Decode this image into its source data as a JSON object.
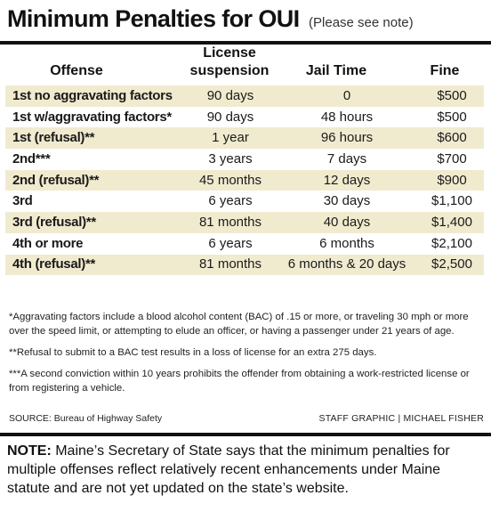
{
  "header": {
    "title": "Minimum Penalties for OUI",
    "note": "(Please see note)"
  },
  "columns": {
    "offense": "Offense",
    "license_line1": "License",
    "license_line2": "suspension",
    "jail": "Jail Time",
    "fine": "Fine"
  },
  "rows": [
    {
      "offense": "1st no aggravating factors",
      "license": "90 days",
      "jail": "0",
      "fine": "$500"
    },
    {
      "offense": "1st w/aggravating factors*",
      "license": "90 days",
      "jail": "48 hours",
      "fine": "$500"
    },
    {
      "offense": "1st (refusal)**",
      "license": "1 year",
      "jail": "96 hours",
      "fine": "$600"
    },
    {
      "offense": "2nd***",
      "license": "3 years",
      "jail": "7 days",
      "fine": "$700"
    },
    {
      "offense": "2nd (refusal)**",
      "license": "45 months",
      "jail": "12 days",
      "fine": "$900"
    },
    {
      "offense": "3rd",
      "license": "6 years",
      "jail": "30 days",
      "fine": "$1,100"
    },
    {
      "offense": "3rd (refusal)**",
      "license": "81 months",
      "jail": "40 days",
      "fine": "$1,400"
    },
    {
      "offense": "4th or more",
      "license": "6 years",
      "jail": "6 months",
      "fine": "$2,100"
    },
    {
      "offense": "4th (refusal)**",
      "license": "81 months",
      "jail": "6 months & 20 days",
      "fine": "$2,500"
    }
  ],
  "footnotes": [
    "*Aggravating factors include a blood alcohol content (BAC) of .15 or more, or traveling 30 mph or more over the speed limit, or attempting to elude an officer, or having a passenger under 21 years of age.",
    "**Refusal to submit to a BAC test results in a loss of license for an extra 275 days.",
    "***A second conviction within 10 years prohibits the offender from obtaining a work-restricted license or from registering a vehicle."
  ],
  "source": "SOURCE: Bureau of Highway Safety",
  "credit": "STAFF GRAPHIC | MICHAEL FISHER",
  "note": {
    "label": "NOTE:",
    "text": " Maine’s Secretary of State says that the minimum penalties for multiple offenses reflect relatively recent enhancements under Maine statute and are not yet updated on the state’s website."
  },
  "colors": {
    "shade": "#f0ebcf",
    "rule": "#111111"
  }
}
